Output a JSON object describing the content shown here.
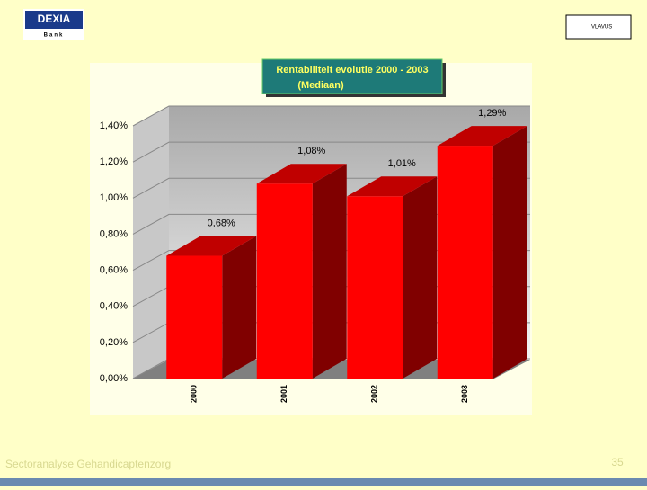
{
  "logo": {
    "name": "DEXIA",
    "sub": "Bank"
  },
  "partner_logo": "VLAVUS",
  "footer": "Sectoranalyse Gehandicaptenzorg",
  "page_number": "35",
  "chart_data": {
    "type": "bar3d",
    "title": "Rentabiliteit evolutie 2000 - 2003",
    "subtitle": "(Mediaan)",
    "categories": [
      "2000",
      "2001",
      "2002",
      "2003"
    ],
    "values": [
      0.68,
      1.08,
      1.01,
      1.29
    ],
    "value_labels": [
      "0,68%",
      "1,08%",
      "1,01%",
      "1,29%"
    ],
    "color": "#ff0000",
    "ylim": [
      0,
      1.4
    ],
    "yticks": [
      {
        "value": 0,
        "label": "0,00%"
      },
      {
        "value": 0.2,
        "label": "0,20%"
      },
      {
        "value": 0.4,
        "label": "0,40%"
      },
      {
        "value": 0.6,
        "label": "0,60%"
      },
      {
        "value": 0.8,
        "label": "0,80%"
      },
      {
        "value": 1.0,
        "label": "1,00%"
      },
      {
        "value": 1.2,
        "label": "1,20%"
      },
      {
        "value": 1.4,
        "label": "1,40%"
      }
    ],
    "grid": true
  }
}
